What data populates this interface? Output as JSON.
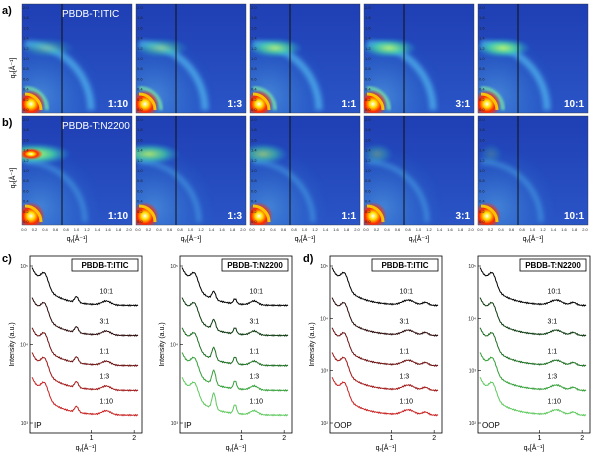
{
  "figure": {
    "panel_a": {
      "letter": "a)",
      "material": "PBDB-T:ITIC",
      "ratios": [
        "1:10",
        "1:3",
        "1:1",
        "3:1",
        "10:1"
      ],
      "ylabel": "qₓ[Å⁻¹]"
    },
    "panel_b": {
      "letter": "b)",
      "material": "PBDB-T:N2200",
      "ratios": [
        "1:10",
        "1:3",
        "1:1",
        "3:1",
        "10:1"
      ],
      "ylabel": "qₓ[Å⁻¹]",
      "xlabel": "qᵧ[Å⁻¹]"
    },
    "map_ticks_y": [
      "2.0",
      "1.8",
      "1.6",
      "1.4",
      "1.2",
      "1.0",
      "0.8",
      "0.6",
      "0.4",
      "0.2",
      "0.0"
    ],
    "map_ticks_x": [
      "0.0",
      "0.2",
      "0.4",
      "0.6",
      "0.8",
      "1.0",
      "1.2",
      "1.4",
      "1.6",
      "1.8",
      "2.0"
    ],
    "panel_c": {
      "letter": "c)",
      "ylabel": "Intensity (a.u.)",
      "xlabel": "qᵧ[Å⁻¹]",
      "plots": [
        {
          "box": "PBDB-T:ITIC",
          "corner": "IP",
          "labels": [
            "10:1",
            "3:1",
            "1:1",
            "1:3",
            "1:10"
          ],
          "yticks": [
            "10⁵",
            "10⁴",
            "10³"
          ],
          "xticks": [
            "1",
            "2"
          ]
        },
        {
          "box": "PBDB-T:N2200",
          "corner": "IP",
          "labels": [
            "10:1",
            "3:1",
            "1:1",
            "1:3",
            "1:10"
          ],
          "yticks": [
            "10⁵",
            "10⁴",
            "10³"
          ],
          "xticks": [
            "1",
            "2"
          ]
        }
      ]
    },
    "panel_d": {
      "letter": "d)",
      "ylabel": "Intensity (a.u.)",
      "xlabel": "qₓ[Å⁻¹]",
      "plots": [
        {
          "box": "PBDB-T:ITIC",
          "corner": "OOP",
          "labels": [
            "10:1",
            "3:1",
            "1:1",
            "1:3",
            "1:10"
          ],
          "yticks": [
            "10⁵",
            "10⁴",
            "10³",
            "10²"
          ],
          "xticks": [
            "1",
            "2"
          ]
        },
        {
          "box": "PBDB-T:N2200",
          "corner": "OOP",
          "labels": [
            "10:1",
            "3:1",
            "1:1",
            "1:3",
            "1:10"
          ],
          "yticks": [
            "10⁵",
            "10⁴",
            "10³",
            "10²"
          ],
          "xticks": [
            "1",
            "2"
          ]
        }
      ]
    },
    "colors": {
      "itic_curves": [
        "#000000",
        "#2a0a0a",
        "#6a1010",
        "#a01818",
        "#c82020"
      ],
      "n2200_curves": [
        "#000000",
        "#0d3a10",
        "#1d6e22",
        "#36a03a",
        "#5ec85e"
      ]
    }
  }
}
